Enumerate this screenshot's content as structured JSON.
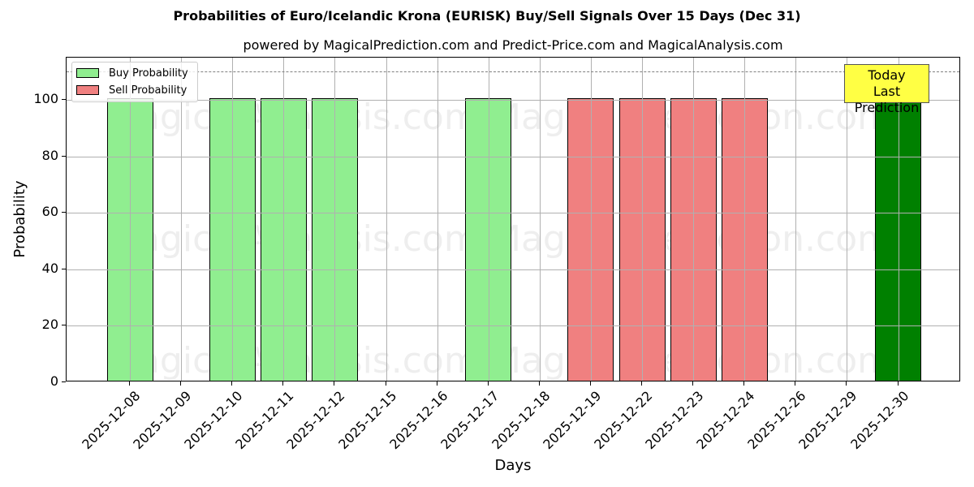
{
  "chart_data": {
    "type": "bar",
    "title": "Probabilities of Euro/Icelandic Krona (EURISK) Buy/Sell Signals Over 15 Days (Dec 31)",
    "subtitle": "powered by MagicalPrediction.com and Predict-Price.com and MagicalAnalysis.com",
    "xlabel": "Days",
    "ylabel": "Probability",
    "ylim": [
      0,
      115
    ],
    "yticks": [
      0,
      20,
      40,
      60,
      80,
      100
    ],
    "grid": true,
    "legend_position": "upper left",
    "categories": [
      "2025-12-08",
      "2025-12-09",
      "2025-12-10",
      "2025-12-11",
      "2025-12-12",
      "2025-12-15",
      "2025-12-16",
      "2025-12-17",
      "2025-12-18",
      "2025-12-19",
      "2025-12-22",
      "2025-12-23",
      "2025-12-24",
      "2025-12-26",
      "2025-12-29",
      "2025-12-30"
    ],
    "series": [
      {
        "name": "Buy Probability",
        "color": "#90ee90",
        "values": [
          100,
          0,
          100,
          100,
          100,
          0,
          0,
          100,
          0,
          0,
          0,
          0,
          0,
          0,
          0,
          100
        ]
      },
      {
        "name": "Sell Probability",
        "color": "#f08080",
        "values": [
          0,
          0,
          0,
          0,
          0,
          0,
          0,
          0,
          0,
          100,
          100,
          100,
          100,
          0,
          0,
          0
        ]
      }
    ],
    "highlight": {
      "category": "2025-12-30",
      "color": "#008000",
      "label": "Today\nLast Prediction"
    },
    "reference_line": {
      "y": 110,
      "style": "dashed"
    },
    "watermarks": [
      "MagicalAnalysis.com",
      "MagicalPrediction.com"
    ]
  },
  "legend": {
    "buy": "Buy Probability",
    "sell": "Sell Probability"
  },
  "annotation": {
    "line1": "Today",
    "line2": "Last Prediction"
  }
}
